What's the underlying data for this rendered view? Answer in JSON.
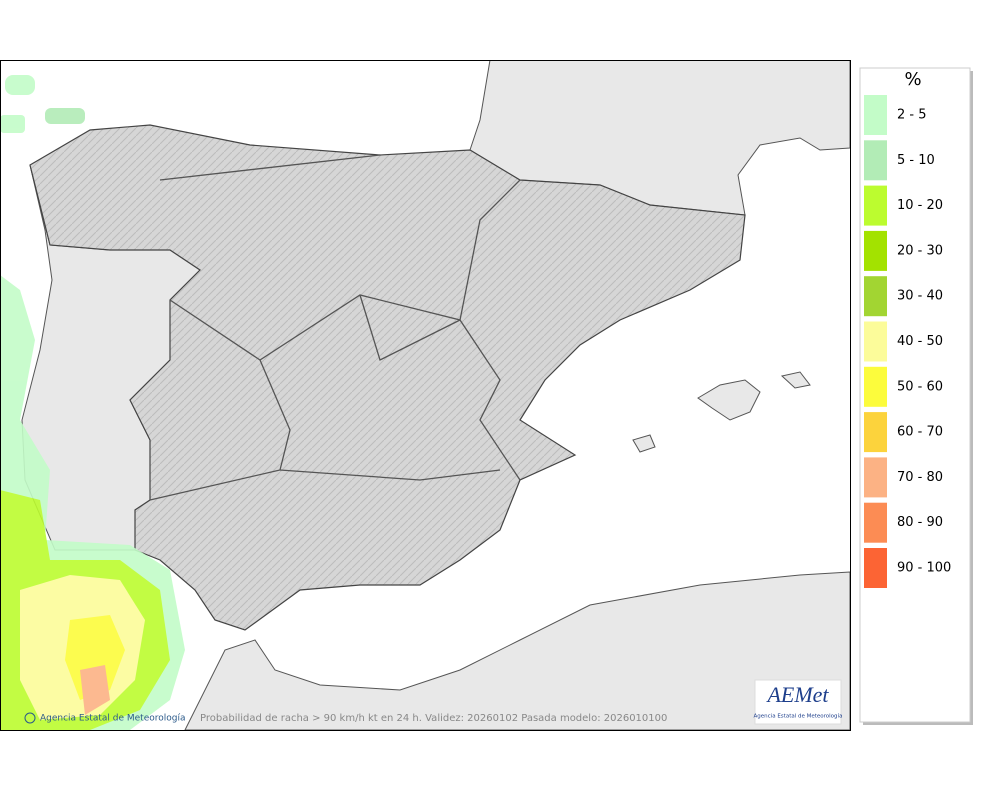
{
  "legend": {
    "unit": "%",
    "items": [
      {
        "label": "2 - 5",
        "color": "#c3fcc8"
      },
      {
        "label": "5 - 10",
        "color": "#b2ecb6"
      },
      {
        "label": "10 - 20",
        "color": "#bcfc2f"
      },
      {
        "label": "20 - 30",
        "color": "#a3e200"
      },
      {
        "label": "30 - 40",
        "color": "#a2d532"
      },
      {
        "label": "40 - 50",
        "color": "#fcfc9a"
      },
      {
        "label": "50 - 60",
        "color": "#fcfc3c"
      },
      {
        "label": "60 - 70",
        "color": "#fcd33c"
      },
      {
        "label": "70 - 80",
        "color": "#fcb284"
      },
      {
        "label": "80 - 90",
        "color": "#fc8c54"
      },
      {
        "label": "90 - 100",
        "color": "#fc6434"
      }
    ]
  },
  "footer": {
    "credit": "Agencia Estatal de Meteorología",
    "caption": "Probabilidad de racha > 90 km/h kt en 24 h. Validez: 20260102 Pasada modelo: 2026010100"
  },
  "logo": {
    "text": "AEMet",
    "subtitle": "Agencia Estatal de Meteorología"
  }
}
